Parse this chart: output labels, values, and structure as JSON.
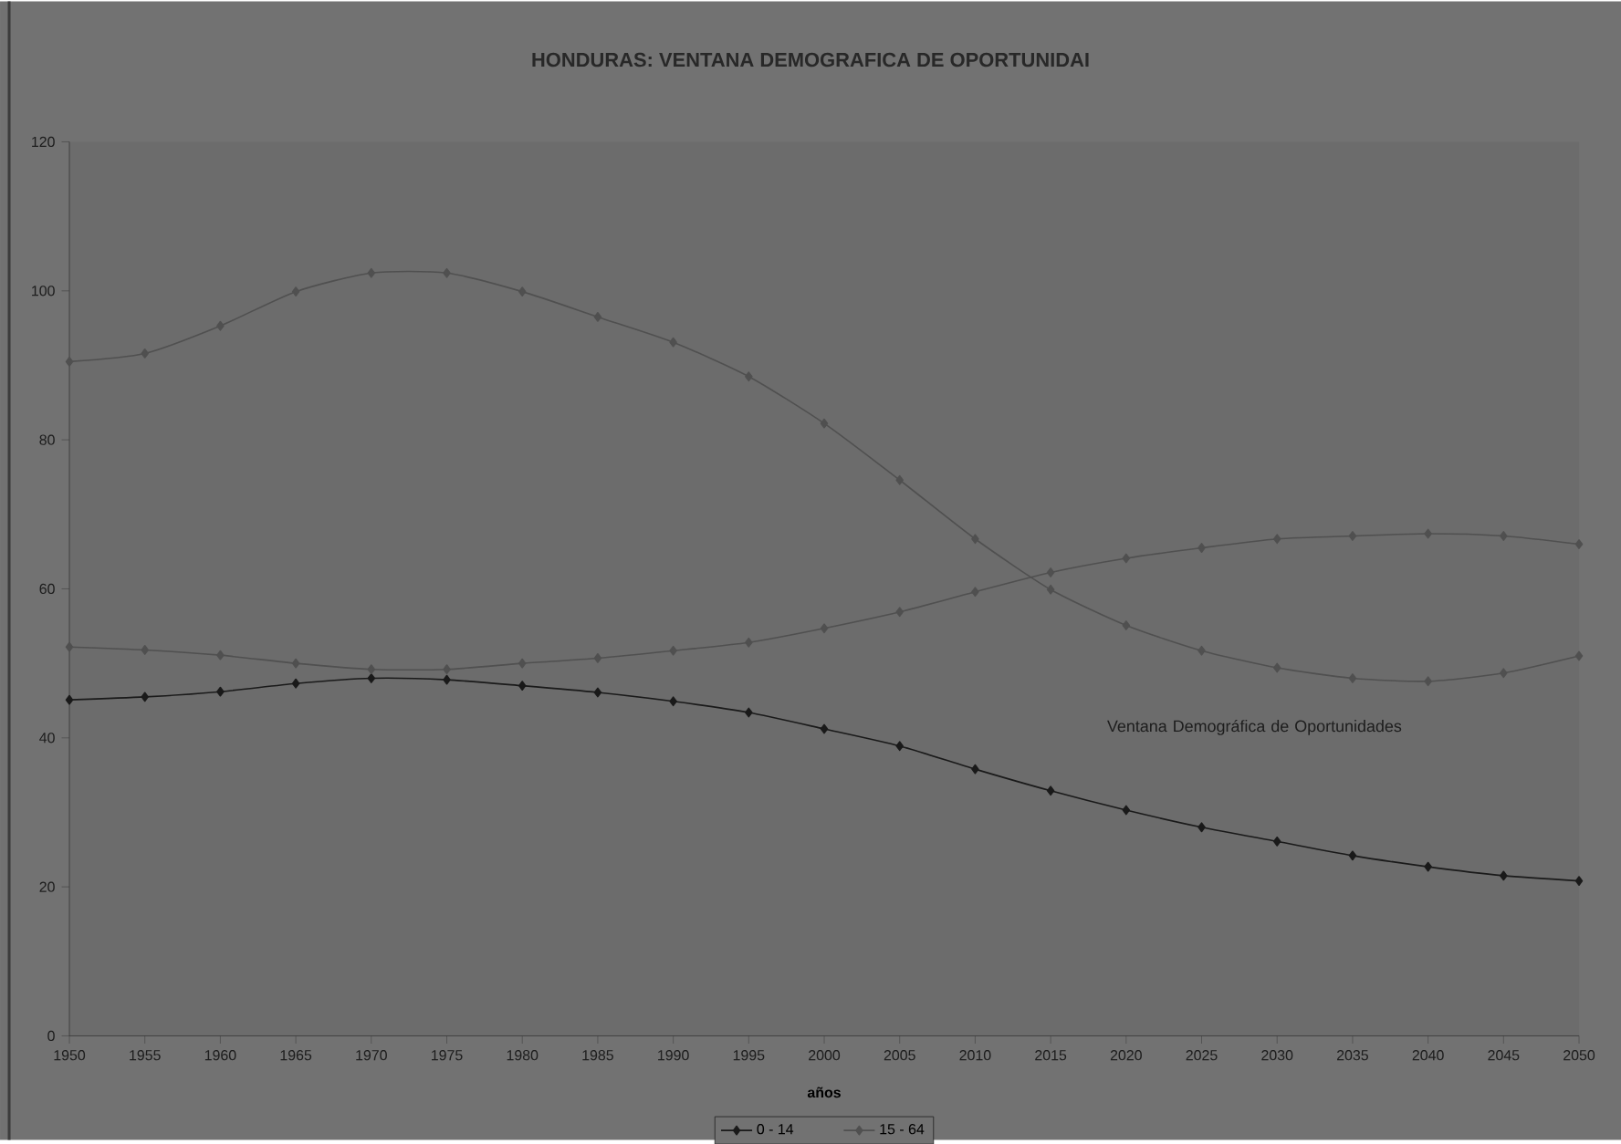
{
  "chart_data": {
    "type": "line",
    "title": "HONDURAS: VENTANA DEMOGRAFICA DE OPORTUNIDAI",
    "xlabel": "años",
    "x": [
      1950,
      1955,
      1960,
      1965,
      1970,
      1975,
      1980,
      1985,
      1990,
      1995,
      2000,
      2005,
      2010,
      2015,
      2020,
      2025,
      2030,
      2035,
      2040,
      2045,
      2050
    ],
    "series": [
      {
        "name": "0 - 14",
        "color": "#1a1a1a",
        "values": [
          45.1,
          45.5,
          46.2,
          47.3,
          48.0,
          47.8,
          47.0,
          46.1,
          44.9,
          43.4,
          41.2,
          38.9,
          35.8,
          32.9,
          30.3,
          28.0,
          26.1,
          24.2,
          22.7,
          21.5,
          20.8
        ]
      },
      {
        "name": "15 - 64",
        "color": "#505050",
        "values": [
          52.2,
          51.8,
          51.1,
          50.0,
          49.2,
          49.2,
          50.0,
          50.7,
          51.7,
          52.8,
          54.7,
          56.9,
          59.6,
          62.2,
          64.1,
          65.5,
          66.7,
          67.1,
          67.4,
          67.1,
          66.0
        ]
      },
      {
        "color": "#505050",
        "values": [
          90.5,
          91.6,
          95.3,
          99.9,
          102.4,
          102.4,
          99.9,
          96.5,
          93.1,
          88.5,
          82.2,
          74.6,
          66.7,
          59.9,
          55.1,
          51.7,
          49.4,
          48.0,
          47.6,
          48.7,
          51.0
        ]
      }
    ],
    "xlim": [
      1950,
      2050
    ],
    "xticks": [
      1950,
      1955,
      1960,
      1965,
      1970,
      1975,
      1980,
      1985,
      1990,
      1995,
      2000,
      2005,
      2010,
      2015,
      2020,
      2025,
      2030,
      2035,
      2040,
      2045,
      2050
    ],
    "ylim": [
      0,
      120
    ],
    "yticks": [
      0,
      20,
      40,
      60,
      80,
      100,
      120
    ],
    "annotations": [
      "Ventana Demográfica de Oportunidades"
    ],
    "legend": "bottom",
    "marker": "diamond",
    "line_style": "solid",
    "grid": false
  }
}
